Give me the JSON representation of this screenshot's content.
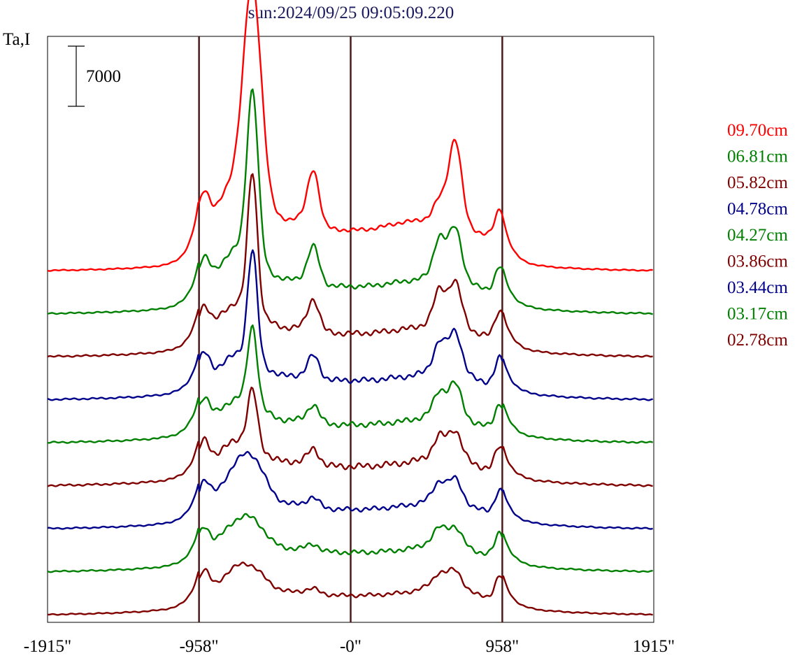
{
  "title": "sun:2024/09/25 09:05:09.220",
  "ylabel": "Ta,I",
  "scale_bar_label": "7000",
  "title_color": "#1a1a5e",
  "chart_data": {
    "type": "line",
    "title": "sun:2024/09/25 09:05:09.220",
    "ylabel": "Ta,I",
    "xlabel": "",
    "x_ticks": [
      {
        "value": -1915,
        "label": "-1915\""
      },
      {
        "value": -958,
        "label": "-958\""
      },
      {
        "value": 0,
        "label": "-0\""
      },
      {
        "value": 958,
        "label": "958\""
      },
      {
        "value": 1915,
        "label": "1915\""
      }
    ],
    "xlim": [
      -1915,
      1915
    ],
    "vertical_lines": [
      -958,
      0,
      958
    ],
    "scale_bar": {
      "value": 7000,
      "label": "7000"
    },
    "grid": false,
    "legend_position": "right",
    "offset_per_trace": "stacked, constant vertical offset",
    "series": [
      {
        "name": "09.70cm",
        "color": "#ff0000",
        "offset": 8,
        "profile": {
          "disk": 1.55,
          "limbL": 1.3,
          "limbR": 1.0,
          "peak1": 7.5,
          "peak1w": 55,
          "peak1broad": 2.2,
          "peak2": 1.9,
          "peak3": 3.0,
          "peak3b": 0.6,
          "hump": 0.5,
          "noise": 0.05
        }
      },
      {
        "name": "06.81cm",
        "color": "#008000",
        "offset": 7,
        "profile": {
          "disk": 1.05,
          "limbL": 0.95,
          "limbR": 0.9,
          "peak1": 6.1,
          "peak1w": 35,
          "peak1broad": 1.6,
          "peak2": 1.3,
          "peak3": 1.8,
          "peak3b": 1.3,
          "hump": 0.3,
          "noise": 0.06
        }
      },
      {
        "name": "05.82cm",
        "color": "#800000",
        "offset": 6,
        "profile": {
          "disk": 0.9,
          "limbL": 0.95,
          "limbR": 1.0,
          "peak1": 5.0,
          "peak1w": 30,
          "peak1broad": 1.3,
          "peak2": 1.1,
          "peak3": 1.5,
          "peak3b": 1.1,
          "hump": 0.25,
          "noise": 0.07
        }
      },
      {
        "name": "04.78cm",
        "color": "#00008b",
        "offset": 5,
        "profile": {
          "disk": 0.75,
          "limbL": 0.95,
          "limbR": 0.95,
          "peak1": 4.0,
          "peak1w": 30,
          "peak1broad": 1.1,
          "peak2": 0.8,
          "peak3": 1.4,
          "peak3b": 0.9,
          "hump": 0.2,
          "noise": 0.07
        }
      },
      {
        "name": "04.27cm",
        "color": "#008000",
        "offset": 4,
        "profile": {
          "disk": 0.7,
          "limbL": 0.95,
          "limbR": 0.9,
          "peak1": 2.8,
          "peak1w": 30,
          "peak1broad": 1.1,
          "peak2": 0.6,
          "peak3": 1.1,
          "peak3b": 0.7,
          "hump": 0.2,
          "noise": 0.07
        }
      },
      {
        "name": "03.86cm",
        "color": "#800000",
        "offset": 3,
        "profile": {
          "disk": 0.75,
          "limbL": 0.9,
          "limbR": 0.85,
          "peak1": 2.0,
          "peak1w": 30,
          "peak1broad": 1.1,
          "peak2": 0.5,
          "peak3": 0.9,
          "peak3b": 0.6,
          "hump": 0.2,
          "noise": 0.08
        }
      },
      {
        "name": "03.44cm",
        "color": "#00008b",
        "offset": 2,
        "profile": {
          "disk": 0.75,
          "limbL": 0.9,
          "limbR": 0.85,
          "peak1": 0.7,
          "peak1w": 80,
          "peak1broad": 1.6,
          "peak2": 0.3,
          "peak3": 0.7,
          "peak3b": 0.5,
          "hump": 0.2,
          "noise": 0.06
        }
      },
      {
        "name": "03.17cm",
        "color": "#008000",
        "offset": 1,
        "profile": {
          "disk": 0.75,
          "limbL": 0.85,
          "limbR": 0.85,
          "peak1": 0.3,
          "peak1w": 80,
          "peak1broad": 1.2,
          "peak2": 0.2,
          "peak3": 0.5,
          "peak3b": 0.4,
          "hump": 0.15,
          "noise": 0.06
        }
      },
      {
        "name": "02.78cm",
        "color": "#800000",
        "offset": 0,
        "profile": {
          "disk": 0.75,
          "limbL": 0.85,
          "limbR": 0.85,
          "peak1": 0.2,
          "peak1w": 90,
          "peak1broad": 1.1,
          "peak2": 0.15,
          "peak3": 0.5,
          "peak3b": 0.3,
          "hump": 0.15,
          "noise": 0.05
        }
      }
    ]
  }
}
